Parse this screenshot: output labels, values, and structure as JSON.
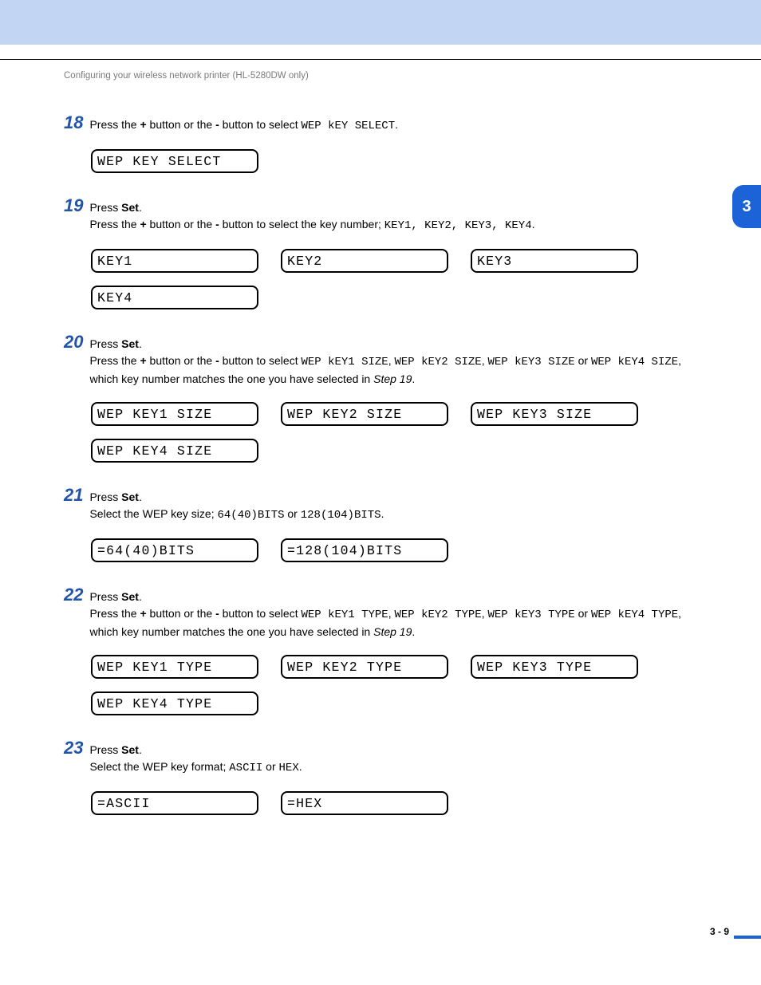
{
  "banner": {
    "color": "#c2d5f2"
  },
  "header": {
    "text": "Configuring your wireless network printer (HL-5280DW only)"
  },
  "chapter_tab": {
    "label": "3",
    "bg": "#1b63d6"
  },
  "steps": {
    "s18": {
      "num": "18",
      "text_pre": "Press the ",
      "btn_plus": "+",
      "text_mid1": " button or the ",
      "btn_minus": "-",
      "text_mid2": " button to select ",
      "mono": "WEP kEY SELECT",
      "text_end": ".",
      "lcds": [
        "WEP KEY SELECT"
      ]
    },
    "s19": {
      "num": "19",
      "line1_pre": "Press ",
      "line1_bold": "Set",
      "line1_end": ".",
      "line2_pre": "Press the ",
      "btn_plus": "+",
      "line2_mid1": " button or the ",
      "btn_minus": "-",
      "line2_mid2": " button to select the key number; ",
      "mono_keys": "KEY1, KEY2, KEY3, KEY4",
      "line2_end": ".",
      "lcds": [
        "KEY1",
        "KEY2",
        "KEY3",
        "KEY4"
      ]
    },
    "s20": {
      "num": "20",
      "line1_pre": "Press ",
      "line1_bold": "Set",
      "line1_end": ".",
      "line2_pre": "Press the ",
      "btn_plus": "+",
      "line2_mid1": " button or the ",
      "btn_minus": "-",
      "line2_mid2": " button to select ",
      "mono1": "WEP kEY1 SIZE",
      "comma1": ", ",
      "mono2": "WEP kEY2 SIZE",
      "comma2": ", ",
      "mono3": "WEP kEY3 SIZE",
      "or": " or ",
      "mono4": "WEP kEY4 SIZE",
      "line3_mid": ", which key number matches the one you have selected in ",
      "step_ref": "Step 19",
      "line3_end": ".",
      "lcds": [
        "WEP KEY1 SIZE",
        "WEP KEY2 SIZE",
        "WEP KEY3 SIZE",
        "WEP KEY4 SIZE"
      ]
    },
    "s21": {
      "num": "21",
      "line1_pre": "Press ",
      "line1_bold": "Set",
      "line1_end": ".",
      "line2_pre": "Select the WEP key size; ",
      "mono1": "64(40)BITS",
      "or": " or ",
      "mono2": "128(104)BITS",
      "line2_end": ".",
      "lcds": [
        "=64(40)BITS",
        "=128(104)BITS"
      ]
    },
    "s22": {
      "num": "22",
      "line1_pre": "Press ",
      "line1_bold": "Set",
      "line1_end": ".",
      "line2_pre": "Press the ",
      "btn_plus": "+",
      "line2_mid1": " button or the ",
      "btn_minus": "-",
      "line2_mid2": " button to select ",
      "mono1": "WEP kEY1 TYPE",
      "comma1": ", ",
      "mono2": "WEP kEY2 TYPE",
      "comma2": ", ",
      "mono3": "WEP kEY3 TYPE",
      "or": " or ",
      "mono4": "WEP kEY4 TYPE",
      "line3_mid": ", which key number matches the one you have selected in ",
      "step_ref": "Step 19",
      "line3_end": ".",
      "lcds": [
        "WEP KEY1 TYPE",
        "WEP KEY2 TYPE",
        "WEP KEY3 TYPE",
        "WEP KEY4 TYPE"
      ]
    },
    "s23": {
      "num": "23",
      "line1_pre": "Press ",
      "line1_bold": "Set",
      "line1_end": ".",
      "line2_pre": "Select the WEP key format; ",
      "mono1": "ASCII",
      "or": " or ",
      "mono2": "HEX",
      "line2_end": ".",
      "lcds": [
        "=ASCII",
        "=HEX"
      ]
    }
  },
  "footer": {
    "page": "3 - 9"
  }
}
